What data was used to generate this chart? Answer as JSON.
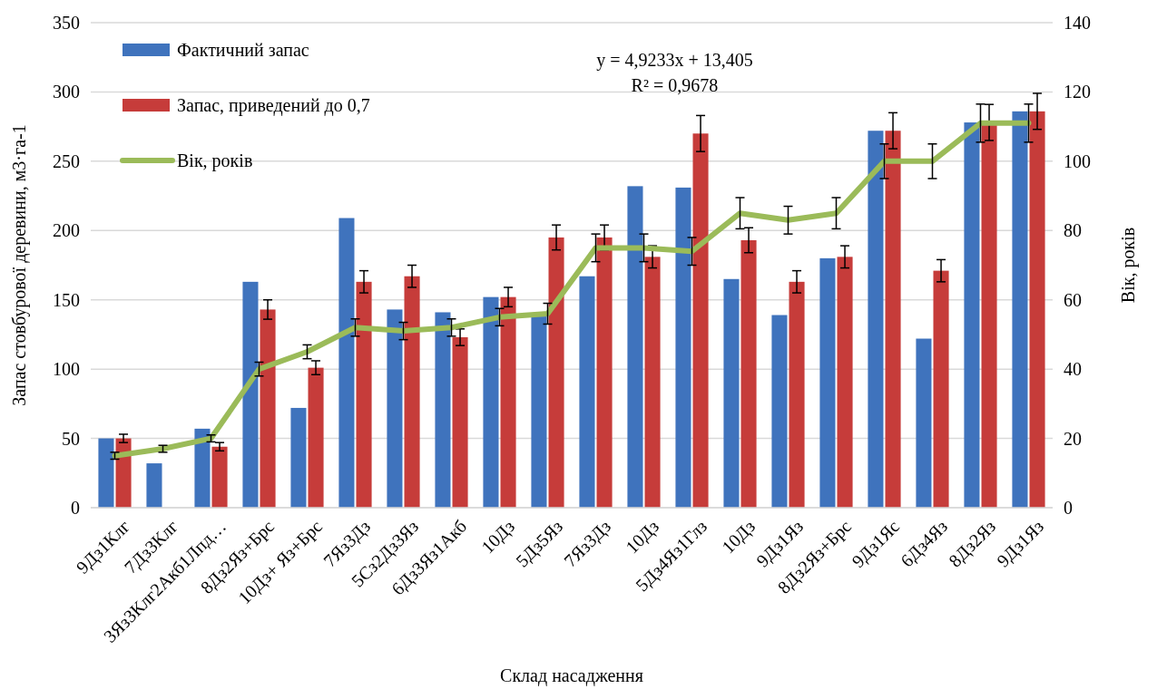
{
  "chart_data": {
    "type": "bar",
    "xlabel": "Склад насадження",
    "ylabel": "Запас стовбурової деревини, м3·га-1",
    "y2label": "Вік, років",
    "categories": [
      "9Дз1Клг",
      "7Дз3Клг",
      "3Яз3Клг2Акб1Лпд…",
      "8Дз2Яз+Брс",
      "10Дз+ Яз+Брс",
      "7Яз3Дз",
      "5Сз2Дз3Яз",
      "6Дз3Яз1Акб",
      "10Дз",
      "5Дз5Яз",
      "7Яз3Дз",
      "10Дз",
      "5Дз4Яз1Глз",
      "10Дз",
      "9Дз1Яз",
      "8Дз2Яз+Брс",
      "9Дз1Яс",
      "6Дз4Яз",
      "8Дз2Яз",
      "9Дз1Яз"
    ],
    "series": [
      {
        "name": "Фактичний запас",
        "color": "#3f73bd",
        "values": [
          50,
          32,
          57,
          163,
          72,
          209,
          143,
          141,
          152,
          138,
          167,
          232,
          231,
          165,
          139,
          180,
          272,
          122,
          278,
          286
        ]
      },
      {
        "name": "Запас, приведений до 0,7",
        "color": "#c63c3a",
        "values": [
          50,
          null,
          44,
          143,
          101,
          163,
          167,
          123,
          152,
          195,
          195,
          181,
          270,
          193,
          163,
          181,
          272,
          171,
          278,
          286
        ],
        "errors": [
          3,
          null,
          3,
          7,
          5,
          8,
          8,
          6,
          7,
          9,
          9,
          8,
          13,
          9,
          8,
          8,
          13,
          8,
          13,
          13
        ]
      },
      {
        "name": "Вік, років",
        "type": "line",
        "axis": "y2",
        "color": "#9bbb59",
        "values": [
          15,
          17,
          20,
          40,
          45,
          52,
          51,
          52,
          55,
          56,
          75,
          75,
          74,
          85,
          83,
          85,
          100,
          100,
          111,
          111
        ],
        "errors": [
          1,
          1,
          1,
          2,
          2,
          2.5,
          2.5,
          2.5,
          2.5,
          3,
          4,
          4,
          4,
          4.5,
          4,
          4.5,
          5,
          5,
          5.5,
          5.5
        ]
      }
    ],
    "ylim": [
      0,
      350
    ],
    "yticks": [
      0,
      50,
      100,
      150,
      200,
      250,
      300,
      350
    ],
    "y2lim": [
      0,
      140
    ],
    "y2ticks": [
      0,
      20,
      40,
      60,
      80,
      100,
      120,
      140
    ],
    "grid": "y",
    "legend": "top left",
    "marker": "none",
    "line_style": "solid",
    "annotations": [
      "y = 4,9233x + 13,405",
      "R² = 0,9678"
    ]
  }
}
